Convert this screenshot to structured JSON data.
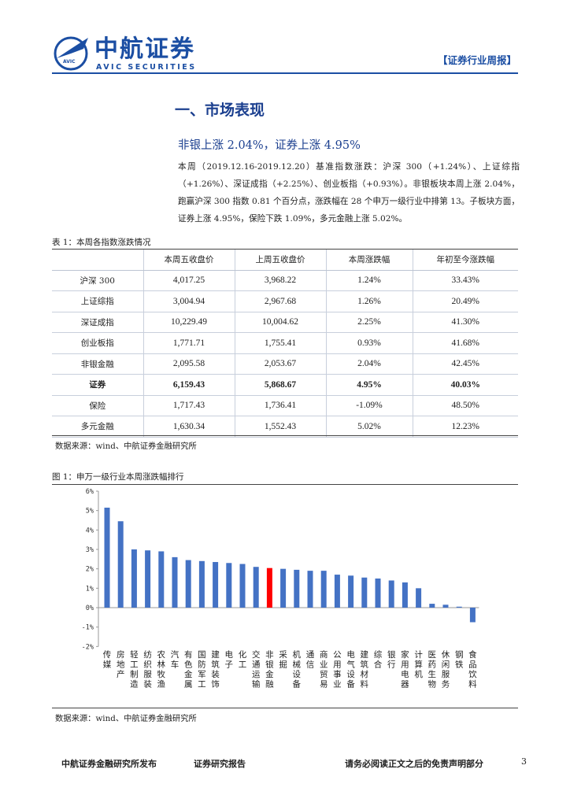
{
  "header": {
    "logo_cn": "中航证券",
    "logo_en": "AVIC SECURITIES",
    "logo_badge": "AVIC",
    "report_tag": "【证券行业周报】"
  },
  "section_title": "一、市场表现",
  "headline": "非银上涨 2.04%，证券上涨 4.95%",
  "paragraph": "本周（2019.12.16-2019.12.20）基准指数涨跌：沪深 300（+1.24%）、上证综指（+1.26%）、深证成指（+2.25%）、创业板指（+0.93%）。非银板块本周上涨 2.04%，跑赢沪深 300 指数 0.81 个百分点，涨跌幅在 28 个申万一级行业中排第 13。子板块方面，证券上涨 4.95%，保险下跌 1.09%，多元金融上涨 5.02%。",
  "table": {
    "caption": "表 1：本周各指数涨跌情况",
    "headers": [
      "",
      "本周五收盘价",
      "上周五收盘价",
      "本周涨跌幅",
      "年初至今涨跌幅"
    ],
    "rows": [
      {
        "name": "沪深 300",
        "close": "4,017.25",
        "prev": "3,968.22",
        "week": "1.24%",
        "ytd": "33.43%"
      },
      {
        "name": "上证综指",
        "close": "3,004.94",
        "prev": "2,967.68",
        "week": "1.26%",
        "ytd": "20.49%"
      },
      {
        "name": "深证成指",
        "close": "10,229.49",
        "prev": "10,004.62",
        "week": "2.25%",
        "ytd": "41.30%"
      },
      {
        "name": "创业板指",
        "close": "1,771.71",
        "prev": "1,755.41",
        "week": "0.93%",
        "ytd": "41.68%"
      },
      {
        "name": "非银金融",
        "close": "2,095.58",
        "prev": "2,053.67",
        "week": "2.04%",
        "ytd": "42.45%"
      },
      {
        "name": "证券",
        "close": "6,159.43",
        "prev": "5,868.67",
        "week": "4.95%",
        "ytd": "40.03%"
      },
      {
        "name": "保险",
        "close": "1,717.43",
        "prev": "1,736.41",
        "week": "-1.09%",
        "ytd": "48.50%"
      },
      {
        "name": "多元金融",
        "close": "1,630.34",
        "prev": "1,552.43",
        "week": "5.02%",
        "ytd": "12.23%"
      }
    ],
    "source": "数据来源：wind、中航证券金融研究所"
  },
  "figure": {
    "caption": "图 1：申万一级行业本周涨跌幅排行",
    "source": "数据来源：wind、中航证券金融研究所"
  },
  "chart_data": {
    "type": "bar",
    "title": "",
    "xlabel": "",
    "ylabel": "",
    "ylim": [
      -2,
      6
    ],
    "yticks": [
      "-2%",
      "-1%",
      "0%",
      "1%",
      "2%",
      "3%",
      "4%",
      "5%",
      "6%"
    ],
    "grid": false,
    "categories": [
      "传媒",
      "房地产",
      "轻工制造",
      "纺织服装",
      "农林牧渔",
      "汽车",
      "有色金属",
      "国防军工",
      "建筑装饰",
      "电子",
      "化工",
      "交通运输",
      "非银金融",
      "采掘",
      "机械设备",
      "通信",
      "商业贸易",
      "公用事业",
      "电气设备",
      "建筑材料",
      "综合",
      "银行",
      "家用电器",
      "计算机",
      "医药生物",
      "休闲服务",
      "钢铁",
      "食品饮料"
    ],
    "values": [
      5.15,
      4.45,
      3.0,
      2.95,
      2.9,
      2.6,
      2.45,
      2.4,
      2.35,
      2.3,
      2.25,
      2.1,
      2.04,
      2.0,
      1.95,
      1.9,
      1.9,
      1.7,
      1.65,
      1.55,
      1.5,
      1.4,
      1.3,
      1.0,
      0.2,
      0.15,
      0.05,
      -0.75
    ],
    "colors": {
      "default": "#4472c4",
      "highlight": "#ff0000"
    },
    "highlight_category": "非银金融"
  },
  "footer": {
    "left": "中航证券金融研究所发布",
    "middle": "证券研究报告",
    "right": "请务必阅读正文之后的免责声明部分",
    "page": "3"
  }
}
